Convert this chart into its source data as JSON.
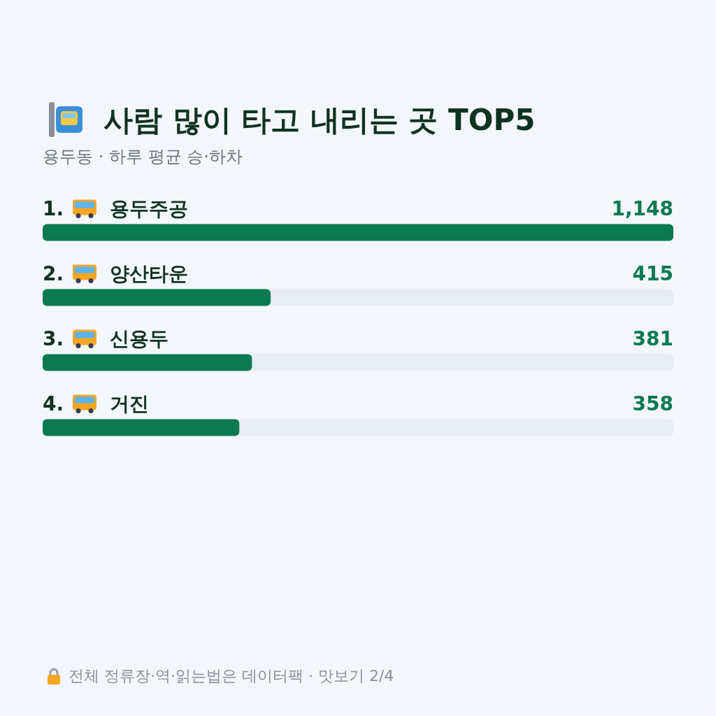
{
  "chart_data": {
    "type": "bar",
    "orientation": "horizontal",
    "title": "사람 많이 타고 내리는 곳 TOP5",
    "subtitle": "용두동 · 하루 평균 승·하차",
    "categories": [
      "1. 용두주공",
      "2. 양산타운",
      "3. 신용두",
      "4. 거진"
    ],
    "values": [
      1148,
      415,
      381,
      358
    ],
    "value_labels": [
      "1,148",
      "415",
      "381",
      "358"
    ],
    "color": "#0b7a50",
    "annotations": [
      "전체 정류장·역·읽는법은 데이터팩 · 맛보기 2/4"
    ]
  }
}
